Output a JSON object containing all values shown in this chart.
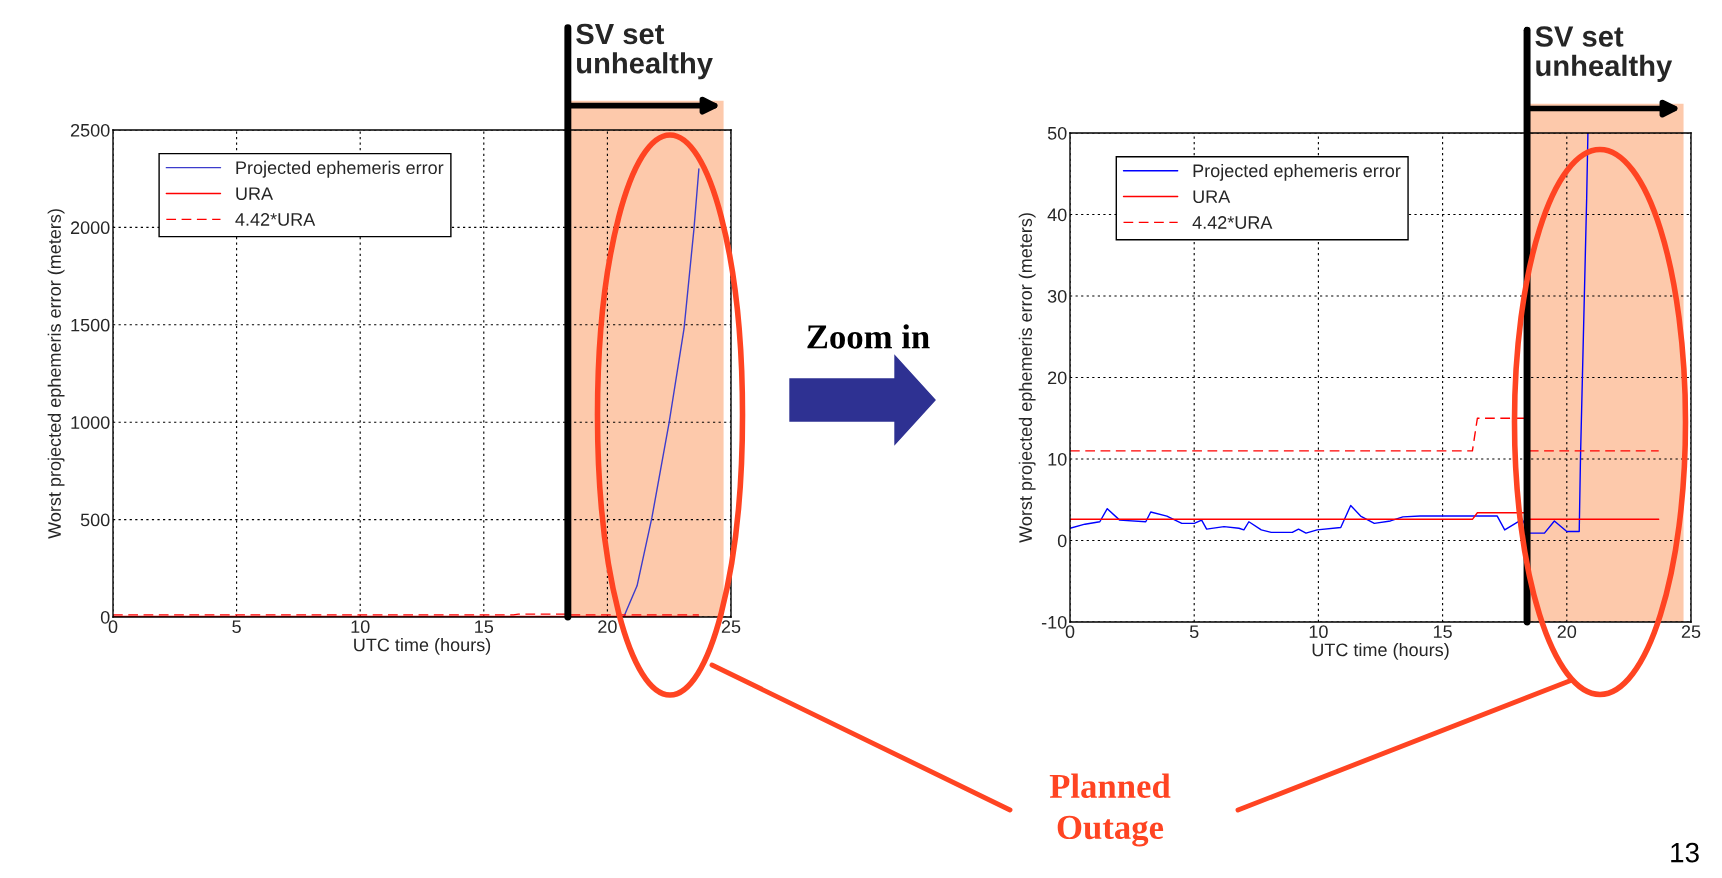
{
  "chart_data": [
    {
      "type": "line",
      "xlabel": "UTC time (hours)",
      "ylabel": "Worst projected ephemeris error (meters)",
      "xlim": [
        0,
        25
      ],
      "ylim": [
        0,
        2500
      ],
      "xticks": [
        0,
        5,
        10,
        15,
        20,
        25
      ],
      "yticks": [
        0,
        500,
        1000,
        1500,
        2000,
        2500
      ],
      "grid": true,
      "legend": "top left",
      "series": [
        {
          "name": "Projected ephemeris error",
          "color": "#3c3ccc",
          "line_style": "solid",
          "x": [
            20.66,
            21.2,
            21.8,
            22.5,
            23.1,
            23.5,
            23.7
          ],
          "values": [
            0,
            160,
            510,
            1000,
            1480,
            1990,
            2300
          ]
        },
        {
          "name": "URA",
          "color": "#ff0000",
          "line_style": "solid",
          "x": [
            0,
            23.7
          ],
          "values": [
            3,
            3
          ]
        },
        {
          "name": "4.42*URA",
          "color": "#ff0000",
          "line_style": "dashed",
          "x": [
            0,
            16.2,
            16.4,
            18.4,
            18.4,
            23.7
          ],
          "values": [
            11,
            11,
            15,
            15,
            11,
            11
          ]
        }
      ],
      "ref_lines": [
        {
          "axis": "x",
          "value": 18.4,
          "label": "SV set\nunhealthy",
          "color": "#000000"
        }
      ],
      "bands": [
        {
          "axis": "x",
          "from": 18.4,
          "to": 24.7,
          "color": "#fdc9ab"
        }
      ],
      "annotations": [
        "Zoom in",
        "Planned\nOutage",
        "13"
      ]
    },
    {
      "type": "line",
      "xlabel": "UTC time (hours)",
      "ylabel": "Worst projected ephemeris error (meters)",
      "xlim": [
        0,
        25
      ],
      "ylim": [
        -10,
        50
      ],
      "xticks": [
        0,
        5,
        10,
        15,
        20,
        25
      ],
      "yticks": [
        -10,
        0,
        10,
        20,
        30,
        40,
        50
      ],
      "grid": true,
      "legend": "top left",
      "series": [
        {
          "name": "Projected ephemeris error",
          "color": "#0000ff",
          "line_style": "solid",
          "x": [
            0,
            0.6,
            1.2,
            1.5,
            2.0,
            3.05,
            3.25,
            3.9,
            4.5,
            5.0,
            5.3,
            5.5,
            6.2,
            6.8,
            7.0,
            7.2,
            7.7,
            8.1,
            8.95,
            9.2,
            9.5,
            9.95,
            10.9,
            11.3,
            11.7,
            12.25,
            12.9,
            13.4,
            14.1,
            14.9,
            16.2,
            17.2,
            17.5,
            18.2,
            18.5,
            19.1,
            19.5,
            20.0,
            20.5,
            20.55,
            20.8,
            20.85
          ],
          "values": [
            1.5,
            2.0,
            2.3,
            3.9,
            2.5,
            2.3,
            3.5,
            3.0,
            2.1,
            2.1,
            2.5,
            1.4,
            1.7,
            1.5,
            1.3,
            2.3,
            1.3,
            1.0,
            1.0,
            1.4,
            0.9,
            1.3,
            1.6,
            4.3,
            3.0,
            2.1,
            2.4,
            2.9,
            3.0,
            3.0,
            3.0,
            3.0,
            1.3,
            2.6,
            0.9,
            0.9,
            2.4,
            1.1,
            1.1,
            10,
            42,
            50
          ]
        },
        {
          "name": "URA",
          "color": "#ff0000",
          "line_style": "solid",
          "x": [
            0,
            16.2,
            16.4,
            18.4,
            18.4,
            23.7
          ],
          "values": [
            2.6,
            2.6,
            3.4,
            3.4,
            2.6,
            2.6
          ]
        },
        {
          "name": "4.42*URA",
          "color": "#ff0000",
          "line_style": "dashed",
          "x": [
            0,
            16.2,
            16.4,
            18.4,
            18.4,
            23.7
          ],
          "values": [
            11,
            11,
            15,
            15,
            11,
            11
          ]
        }
      ],
      "ref_lines": [
        {
          "axis": "x",
          "value": 18.4,
          "label": "SV set\nunhealthy",
          "color": "#000000"
        }
      ],
      "bands": [
        {
          "axis": "x",
          "from": 18.4,
          "to": 24.7,
          "color": "#fdc9ab"
        }
      ]
    }
  ]
}
